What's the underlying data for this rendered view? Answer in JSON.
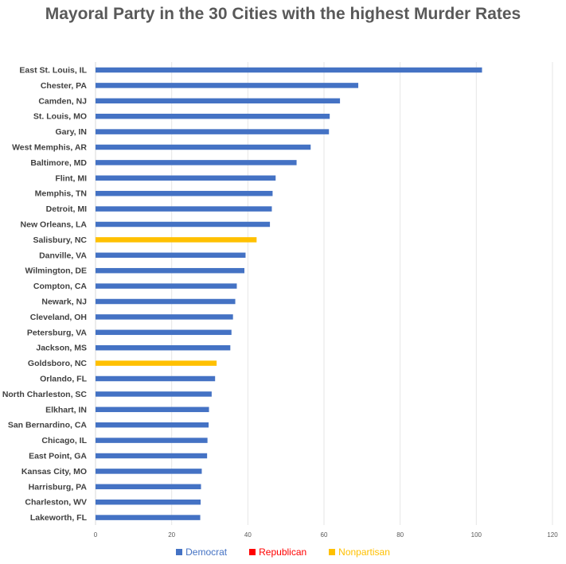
{
  "chart_data": {
    "type": "bar",
    "orientation": "horizontal",
    "title": "Mayoral Party in the 30 Cities with the highest Murder Rates",
    "xlabel": "",
    "ylabel": "",
    "xlim": [
      0,
      120
    ],
    "xticks": [
      0,
      20,
      40,
      60,
      80,
      100,
      120
    ],
    "grid": true,
    "legend_position": "bottom",
    "colors": {
      "Democrat": "#4472C4",
      "Republican": "#FF0000",
      "Nonpartisan": "#FFC000"
    },
    "legend": [
      {
        "name": "Democrat",
        "color": "#4472C4"
      },
      {
        "name": "Republican",
        "color": "#FF0000"
      },
      {
        "name": "Nonpartisan",
        "color": "#FFC000"
      }
    ],
    "bars": [
      {
        "category": "East St. Louis, IL",
        "value": 101.5,
        "party": "Democrat"
      },
      {
        "category": "Chester, PA",
        "value": 69,
        "party": "Democrat"
      },
      {
        "category": "Camden, NJ",
        "value": 64.2,
        "party": "Democrat"
      },
      {
        "category": "St. Louis, MO",
        "value": 61.5,
        "party": "Democrat"
      },
      {
        "category": "Gary, IN",
        "value": 61.3,
        "party": "Democrat"
      },
      {
        "category": "West Memphis, AR",
        "value": 56.5,
        "party": "Democrat"
      },
      {
        "category": "Baltimore, MD",
        "value": 52.8,
        "party": "Democrat"
      },
      {
        "category": "Flint, MI",
        "value": 47.3,
        "party": "Democrat"
      },
      {
        "category": "Memphis, TN",
        "value": 46.5,
        "party": "Democrat"
      },
      {
        "category": "Detroit, MI",
        "value": 46.3,
        "party": "Democrat"
      },
      {
        "category": "New Orleans, LA",
        "value": 45.8,
        "party": "Democrat"
      },
      {
        "category": "Salisbury, NC",
        "value": 42.3,
        "party": "Nonpartisan"
      },
      {
        "category": "Danville, VA",
        "value": 39.4,
        "party": "Democrat"
      },
      {
        "category": "Wilmington, DE",
        "value": 39.1,
        "party": "Democrat"
      },
      {
        "category": "Compton, CA",
        "value": 37.1,
        "party": "Democrat"
      },
      {
        "category": "Newark, NJ",
        "value": 36.7,
        "party": "Democrat"
      },
      {
        "category": "Cleveland, OH",
        "value": 36.1,
        "party": "Democrat"
      },
      {
        "category": "Petersburg, VA",
        "value": 35.7,
        "party": "Democrat"
      },
      {
        "category": "Jackson, MS",
        "value": 35.4,
        "party": "Democrat"
      },
      {
        "category": "Goldsboro, NC",
        "value": 31.8,
        "party": "Nonpartisan"
      },
      {
        "category": "Orlando, FL",
        "value": 31.4,
        "party": "Democrat"
      },
      {
        "category": "North Charleston, SC",
        "value": 30.5,
        "party": "Democrat"
      },
      {
        "category": "Elkhart, IN",
        "value": 29.8,
        "party": "Democrat"
      },
      {
        "category": "San Bernardino, CA",
        "value": 29.7,
        "party": "Democrat"
      },
      {
        "category": "Chicago, IL",
        "value": 29.4,
        "party": "Democrat"
      },
      {
        "category": "East Point, GA",
        "value": 29.3,
        "party": "Democrat"
      },
      {
        "category": "Kansas City, MO",
        "value": 27.9,
        "party": "Democrat"
      },
      {
        "category": "Harrisburg, PA",
        "value": 27.7,
        "party": "Democrat"
      },
      {
        "category": "Charleston, WV",
        "value": 27.6,
        "party": "Democrat"
      },
      {
        "category": "Lakeworth, FL",
        "value": 27.5,
        "party": "Democrat"
      }
    ]
  }
}
